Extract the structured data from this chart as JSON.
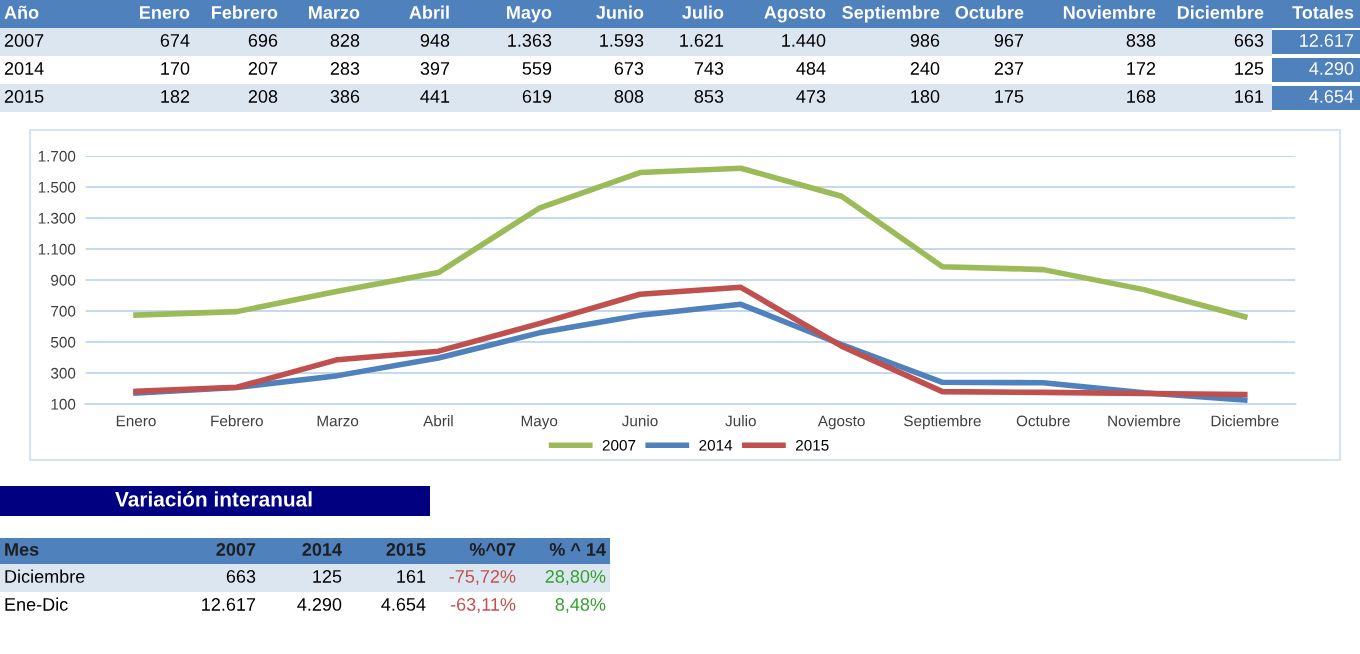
{
  "chart_data": {
    "type": "line",
    "categories": [
      "Enero",
      "Febrero",
      "Marzo",
      "Abril",
      "Mayo",
      "Junio",
      "Julio",
      "Agosto",
      "Septiembre",
      "Octubre",
      "Noviembre",
      "Diciembre"
    ],
    "series": [
      {
        "name": "2007",
        "color": "#9bbb59",
        "values": [
          674,
          696,
          828,
          948,
          1363,
          1593,
          1621,
          1440,
          986,
          967,
          838,
          663
        ],
        "value_labels": [
          "674",
          "696",
          "828",
          "948",
          "1.363",
          "1.593",
          "1.621",
          "1.440",
          "986",
          "967",
          "838",
          "663"
        ]
      },
      {
        "name": "2014",
        "color": "#4f81bd",
        "values": [
          170,
          207,
          283,
          397,
          559,
          673,
          743,
          484,
          240,
          237,
          172,
          125
        ],
        "value_labels": [
          "170",
          "207",
          "283",
          "397",
          "559",
          "673",
          "743",
          "484",
          "240",
          "237",
          "172",
          "125"
        ]
      },
      {
        "name": "2015",
        "color": "#c0504d",
        "values": [
          182,
          208,
          386,
          441,
          619,
          808,
          853,
          473,
          180,
          175,
          168,
          161
        ],
        "value_labels": [
          "182",
          "208",
          "386",
          "441",
          "619",
          "808",
          "853",
          "473",
          "180",
          "175",
          "168",
          "161"
        ]
      }
    ],
    "ylim": [
      100,
      1700
    ],
    "yticks": [
      100,
      {
        "value": 300,
        "label": "300"
      },
      {
        "value": 500,
        "label": "500"
      },
      {
        "value": 700,
        "label": "700"
      },
      {
        "value": 900,
        "label": "900"
      },
      {
        "value": 1100,
        "label": "1.100"
      },
      {
        "value": 1300,
        "label": "1.300"
      },
      {
        "value": 1500,
        "label": "1.500"
      },
      {
        "value": 1700,
        "label": "1.700"
      }
    ],
    "grid": "y",
    "legend": "bottom",
    "marker": "none",
    "line_style": "solid",
    "annotations": [
      "Año",
      "Totales",
      "12.617",
      "4.290",
      "4.654",
      "Variación interanual",
      "Mes",
      "2007",
      "2014",
      "2015",
      "%^07",
      "% ^ 14",
      "Diciembre",
      "663",
      "125",
      "161",
      "-75,72%",
      "28,80%",
      "Ene-Dic",
      "12.617",
      "4.290",
      "4.654",
      "-63,11%",
      "8,48%"
    ]
  }
}
